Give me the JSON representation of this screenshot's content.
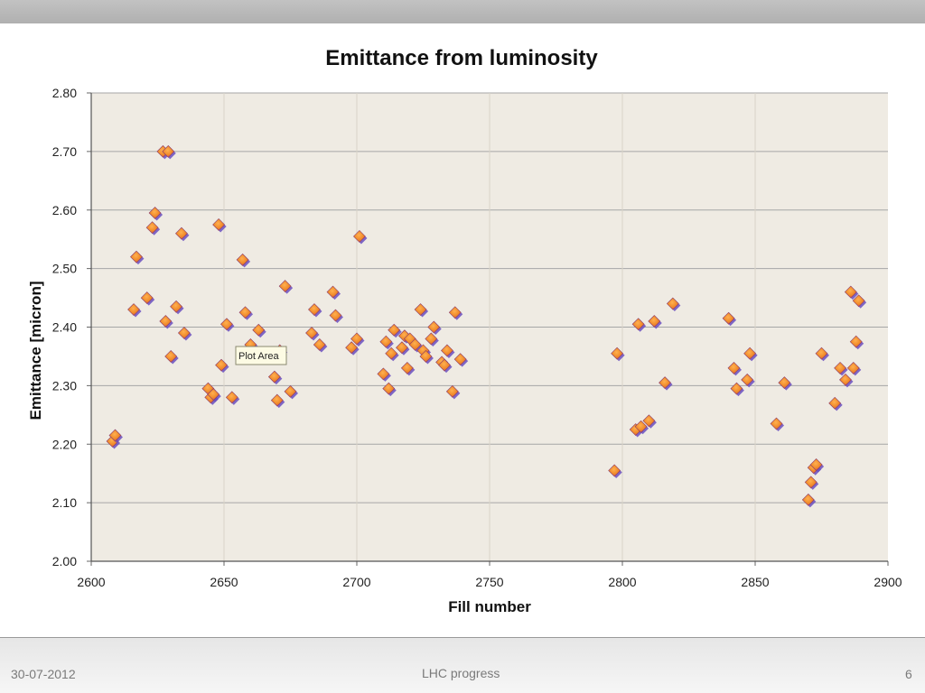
{
  "slide": {
    "date": "30-07-2012",
    "footer_title": "LHC progress",
    "page_number": "6"
  },
  "tooltip": {
    "text": "Plot Area"
  },
  "colors": {
    "plot_background": "#efebe3",
    "marker_outer": "#6a4fc0",
    "marker_inner": "#f08a2a",
    "gridline": "#a6a6a6"
  },
  "chart_data": {
    "type": "scatter",
    "title": "Emittance from luminosity",
    "xlabel": "Fill number",
    "ylabel": "Emittance [micron]",
    "xlim": [
      2600,
      2900
    ],
    "ylim": [
      2.0,
      2.8
    ],
    "xticks": [
      2600,
      2650,
      2700,
      2750,
      2800,
      2850,
      2900
    ],
    "yticks": [
      "2.00",
      "2.10",
      "2.20",
      "2.30",
      "2.40",
      "2.50",
      "2.60",
      "2.70",
      "2.80"
    ],
    "grid": "horizontal",
    "series": [
      {
        "points": [
          [
            2608,
            2.205
          ],
          [
            2609,
            2.215
          ],
          [
            2616,
            2.43
          ],
          [
            2617,
            2.52
          ],
          [
            2621,
            2.45
          ],
          [
            2623,
            2.57
          ],
          [
            2624,
            2.595
          ],
          [
            2627,
            2.7
          ],
          [
            2628,
            2.41
          ],
          [
            2629,
            2.7
          ],
          [
            2630,
            2.35
          ],
          [
            2632,
            2.435
          ],
          [
            2634,
            2.56
          ],
          [
            2635,
            2.39
          ],
          [
            2644,
            2.295
          ],
          [
            2645,
            2.28
          ],
          [
            2646,
            2.285
          ],
          [
            2648,
            2.575
          ],
          [
            2649,
            2.335
          ],
          [
            2651,
            2.405
          ],
          [
            2653,
            2.28
          ],
          [
            2657,
            2.515
          ],
          [
            2658,
            2.425
          ],
          [
            2660,
            2.37
          ],
          [
            2663,
            2.395
          ],
          [
            2669,
            2.315
          ],
          [
            2670,
            2.275
          ],
          [
            2671,
            2.36
          ],
          [
            2673,
            2.47
          ],
          [
            2675,
            2.29
          ],
          [
            2683,
            2.39
          ],
          [
            2684,
            2.43
          ],
          [
            2686,
            2.37
          ],
          [
            2691,
            2.46
          ],
          [
            2692,
            2.42
          ],
          [
            2698,
            2.365
          ],
          [
            2700,
            2.38
          ],
          [
            2701,
            2.555
          ],
          [
            2710,
            2.32
          ],
          [
            2711,
            2.375
          ],
          [
            2712,
            2.295
          ],
          [
            2713,
            2.355
          ],
          [
            2714,
            2.395
          ],
          [
            2717,
            2.365
          ],
          [
            2718,
            2.385
          ],
          [
            2719,
            2.33
          ],
          [
            2720,
            2.38
          ],
          [
            2722,
            2.37
          ],
          [
            2724,
            2.43
          ],
          [
            2725,
            2.36
          ],
          [
            2726,
            2.35
          ],
          [
            2728,
            2.38
          ],
          [
            2729,
            2.4
          ],
          [
            2732,
            2.34
          ],
          [
            2733,
            2.335
          ],
          [
            2734,
            2.36
          ],
          [
            2736,
            2.29
          ],
          [
            2737,
            2.425
          ],
          [
            2739,
            2.345
          ],
          [
            2797,
            2.155
          ],
          [
            2798,
            2.355
          ],
          [
            2805,
            2.225
          ],
          [
            2806,
            2.405
          ],
          [
            2807,
            2.23
          ],
          [
            2810,
            2.24
          ],
          [
            2812,
            2.41
          ],
          [
            2816,
            2.305
          ],
          [
            2819,
            2.44
          ],
          [
            2840,
            2.415
          ],
          [
            2842,
            2.33
          ],
          [
            2843,
            2.295
          ],
          [
            2847,
            2.31
          ],
          [
            2848,
            2.355
          ],
          [
            2858,
            2.235
          ],
          [
            2861,
            2.305
          ],
          [
            2870,
            2.105
          ],
          [
            2871,
            2.135
          ],
          [
            2872,
            2.16
          ],
          [
            2873,
            2.165
          ],
          [
            2875,
            2.355
          ],
          [
            2880,
            2.27
          ],
          [
            2882,
            2.33
          ],
          [
            2884,
            2.31
          ],
          [
            2886,
            2.46
          ],
          [
            2887,
            2.33
          ],
          [
            2888,
            2.375
          ],
          [
            2889,
            2.445
          ]
        ]
      }
    ]
  }
}
